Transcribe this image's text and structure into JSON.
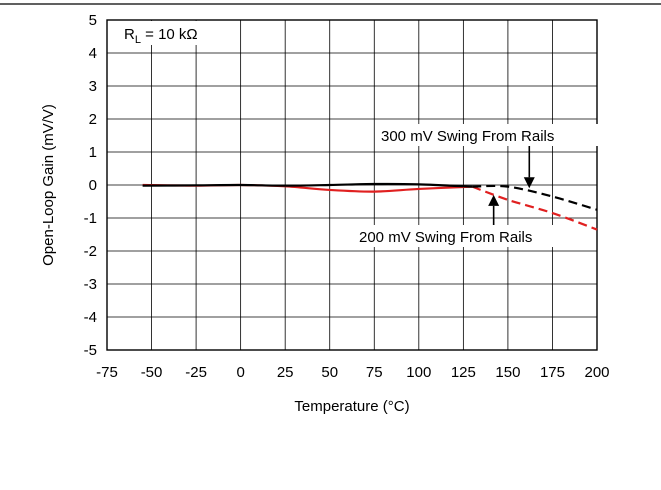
{
  "chart_data": {
    "type": "line",
    "title": "",
    "xlabel": "Temperature (°C)",
    "ylabel": "Open-Loop Gain (mV/V)",
    "xlim": [
      -75,
      200
    ],
    "ylim": [
      -5,
      5
    ],
    "x_ticks": [
      -75,
      -50,
      -25,
      0,
      25,
      50,
      75,
      100,
      125,
      150,
      175,
      200
    ],
    "y_ticks": [
      5,
      4,
      3,
      2,
      1,
      0,
      -1,
      -2,
      -3,
      -4,
      -5
    ],
    "grid": true,
    "condition_label": {
      "base": "R",
      "sub": "L",
      "rest": " = 10 kΩ"
    },
    "series": [
      {
        "color": "#e02020",
        "solid": {
          "x": [
            -55,
            -25,
            0,
            25,
            50,
            75,
            100,
            130
          ],
          "y": [
            0.0,
            -0.02,
            0.0,
            -0.04,
            -0.15,
            -0.2,
            -0.12,
            -0.05
          ]
        },
        "dashed": {
          "x": [
            130,
            150,
            175,
            200
          ],
          "y": [
            -0.05,
            -0.45,
            -0.85,
            -1.35
          ]
        }
      },
      {
        "color": "#000000",
        "solid": {
          "x": [
            -55,
            -25,
            0,
            25,
            50,
            75,
            100,
            130
          ],
          "y": [
            -0.02,
            -0.01,
            0.0,
            -0.02,
            0.0,
            0.03,
            0.02,
            -0.05
          ]
        },
        "dashed": {
          "x": [
            130,
            150,
            175,
            200
          ],
          "y": [
            -0.05,
            -0.05,
            -0.35,
            -0.75
          ]
        }
      }
    ],
    "annotations": [
      {
        "text": "300 mV Swing From Rails",
        "arrow_to": {
          "x": 162,
          "y": -0.1
        }
      },
      {
        "text": "200 mV Swing From Rails",
        "arrow_to": {
          "x": 142,
          "y": -0.3
        }
      }
    ]
  }
}
